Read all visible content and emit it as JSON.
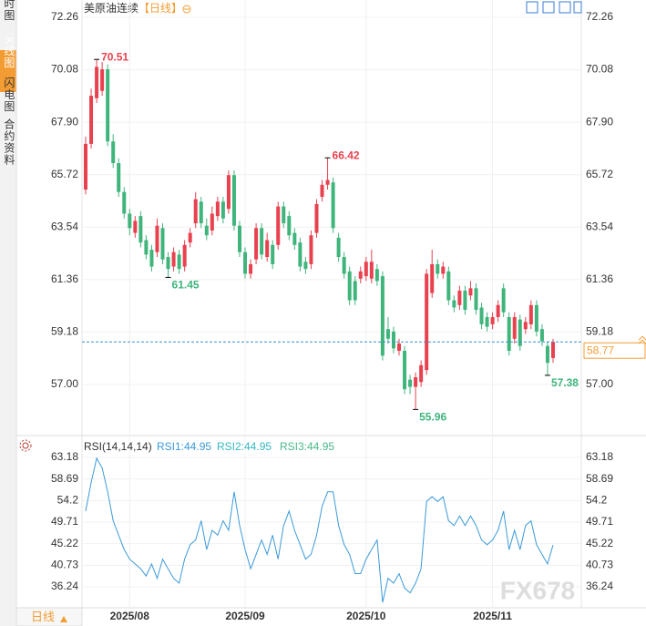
{
  "sidebar": {
    "tabs": [
      "分时图",
      "K线图",
      "闪电图",
      "合约资料"
    ],
    "active": 1
  },
  "period_selector": "日线",
  "watermark": "FX678",
  "chart_data": [
    {
      "type": "candlestick",
      "title": "美原油连续",
      "period": "【日线】",
      "categories": [
        null,
        null,
        null,
        null,
        null,
        null,
        null,
        null,
        "2025/08",
        null,
        null,
        null,
        null,
        null,
        null,
        null,
        null,
        null,
        null,
        null,
        null,
        null,
        null,
        null,
        null,
        null,
        null,
        null,
        null,
        "2025/09",
        null,
        null,
        null,
        null,
        null,
        null,
        null,
        null,
        null,
        null,
        null,
        null,
        null,
        null,
        null,
        null,
        null,
        null,
        null,
        null,
        null,
        "2025/10",
        null,
        null,
        null,
        null,
        null,
        null,
        null,
        null,
        null,
        null,
        null,
        null,
        null,
        null,
        null,
        null,
        null,
        null,
        null,
        null,
        null,
        null,
        "2025/11",
        null,
        null,
        null,
        null,
        null,
        null,
        null,
        null,
        null,
        null,
        null
      ],
      "open": [
        65.1,
        67.0,
        68.9,
        69.2,
        70.1,
        67.1,
        66.2,
        65.0,
        64.1,
        63.3,
        64.0,
        63.0,
        62.6,
        62.5,
        63.5,
        62.3,
        61.9,
        62.4,
        61.9,
        62.9,
        63.7,
        64.6,
        63.6,
        63.4,
        64.0,
        64.6,
        64.3,
        65.7,
        63.6,
        62.5,
        61.6,
        62.2,
        63.5,
        62.3,
        62.8,
        62.8,
        64.4,
        64.0,
        63.3,
        62.9,
        62.1,
        62.0,
        63.3,
        64.8,
        65.3,
        65.4,
        63.1,
        62.3,
        61.7,
        61.3,
        61.4,
        61.5,
        61.4,
        61.8,
        61.5,
        59.3,
        59.2,
        58.4,
        58.4,
        57.2,
        56.9,
        57.1,
        57.6,
        60.8,
        62.0,
        61.6,
        61.7,
        60.5,
        60.3,
        60.9,
        60.7,
        61.0,
        60.2,
        59.8,
        59.5,
        59.8,
        61.0,
        59.8,
        58.9,
        59.7,
        59.3,
        59.5,
        60.3,
        59.3,
        58.6,
        58.1
      ],
      "high": [
        67.3,
        69.3,
        70.51,
        70.4,
        70.3,
        67.4,
        66.4,
        65.2,
        64.3,
        64.0,
        64.2,
        63.2,
        62.8,
        63.9,
        63.7,
        62.5,
        62.7,
        62.6,
        63.0,
        63.5,
        65.0,
        64.8,
        63.9,
        64.4,
        64.8,
        64.8,
        65.9,
        65.9,
        63.8,
        62.7,
        62.2,
        63.7,
        63.7,
        63.3,
        63.0,
        64.6,
        64.6,
        64.2,
        63.5,
        63.1,
        62.3,
        63.4,
        64.7,
        65.5,
        66.42,
        65.6,
        63.3,
        62.5,
        61.9,
        61.5,
        61.9,
        62.3,
        62.6,
        62.0,
        61.7,
        59.8,
        59.4,
        58.9,
        58.6,
        57.4,
        57.5,
        58.0,
        61.8,
        62.6,
        62.2,
        62.1,
        61.9,
        60.7,
        61.1,
        61.1,
        61.3,
        61.2,
        60.4,
        60.0,
        60.0,
        60.5,
        61.2,
        60.0,
        60.0,
        59.9,
        59.8,
        60.5,
        60.5,
        59.5,
        58.8,
        58.9
      ],
      "low": [
        64.9,
        66.8,
        68.7,
        69.0,
        66.9,
        66.0,
        64.8,
        63.9,
        63.2,
        63.1,
        62.7,
        62.2,
        61.7,
        62.3,
        62.0,
        61.45,
        61.7,
        61.6,
        61.7,
        62.7,
        63.5,
        63.5,
        63.0,
        63.2,
        63.8,
        63.7,
        64.1,
        63.4,
        62.3,
        61.4,
        61.4,
        62.0,
        62.2,
        62.1,
        61.8,
        62.6,
        63.5,
        63.0,
        62.6,
        61.7,
        61.6,
        61.8,
        63.1,
        64.6,
        65.1,
        63.3,
        62.1,
        61.4,
        60.3,
        60.3,
        61.2,
        61.3,
        61.2,
        61.1,
        58.0,
        58.7,
        58.3,
        58.2,
        56.6,
        56.6,
        55.96,
        56.9,
        57.4,
        60.6,
        61.4,
        61.4,
        60.3,
        60.0,
        60.1,
        59.9,
        60.5,
        59.9,
        59.3,
        59.2,
        59.3,
        59.6,
        59.8,
        58.2,
        58.7,
        58.4,
        59.1,
        59.3,
        59.0,
        58.6,
        57.38,
        57.9
      ],
      "close": [
        67.0,
        69.0,
        70.2,
        70.1,
        67.1,
        66.2,
        65.0,
        64.1,
        63.5,
        63.8,
        62.9,
        62.4,
        61.9,
        63.6,
        62.2,
        61.8,
        62.5,
        61.8,
        62.8,
        63.3,
        64.7,
        63.7,
        63.2,
        64.1,
        64.6,
        63.9,
        65.7,
        63.6,
        62.5,
        61.6,
        62.0,
        63.5,
        62.4,
        63.0,
        62.0,
        64.4,
        63.7,
        63.2,
        62.8,
        61.9,
        61.8,
        63.2,
        64.5,
        65.3,
        65.5,
        63.5,
        62.3,
        61.6,
        60.5,
        60.5,
        61.7,
        62.1,
        62.1,
        61.3,
        58.2,
        58.9,
        58.5,
        58.7,
        56.8,
        56.9,
        57.3,
        57.8,
        61.6,
        62.0,
        61.6,
        61.9,
        60.5,
        60.2,
        60.9,
        60.1,
        61.0,
        60.1,
        59.5,
        59.4,
        59.8,
        60.3,
        60.0,
        58.4,
        59.8,
        58.6,
        59.6,
        60.3,
        59.2,
        58.8,
        57.9,
        58.77
      ],
      "up_color": "#e8414f",
      "down_color": "#3fb57c",
      "ylim": [
        55.18,
        72.98
      ],
      "yticks": [
        {
          "value": 57,
          "label": "57.00"
        },
        59.18,
        61.36,
        63.54,
        65.72,
        {
          "value": 67.9,
          "label": "67.90"
        },
        70.08,
        72.26
      ],
      "annotate_high": [
        2,
        44
      ],
      "annotate_low": [
        15,
        60,
        84
      ],
      "last_price_line": true
    },
    {
      "type": "line",
      "indicator": "RSI(14,14,14)",
      "legend": [
        "RSI1:44.95",
        "RSI2:44.95",
        "RSI3:44.95"
      ],
      "legend_colors": [
        "#3a9ad9",
        "#35b7c4",
        "#46b98a"
      ],
      "series": [
        {
          "color": "#3a9ad9",
          "values": [
            52,
            58,
            63,
            61,
            56,
            50,
            47,
            44,
            42,
            41,
            40,
            38.5,
            41,
            38,
            42,
            40,
            38,
            37,
            42,
            45,
            46,
            50,
            44,
            48,
            47,
            50,
            48,
            56,
            49,
            44,
            40,
            43,
            46,
            43,
            47,
            42,
            49,
            52,
            48,
            45,
            42,
            43,
            47,
            53,
            56,
            56,
            49,
            45,
            43,
            39,
            39,
            42,
            44,
            46,
            33,
            38,
            37,
            39,
            36,
            35,
            37,
            40,
            54,
            55,
            54,
            55,
            50,
            49,
            51,
            49,
            51,
            49,
            46,
            45,
            46,
            48,
            52,
            44,
            48,
            44,
            49,
            50,
            45,
            43,
            41,
            44.95
          ]
        }
      ],
      "ylim": [
        31.88,
        66.97
      ],
      "yticks": [
        36.24,
        40.73,
        45.22,
        49.71,
        54.2,
        58.69,
        63.18
      ]
    }
  ]
}
